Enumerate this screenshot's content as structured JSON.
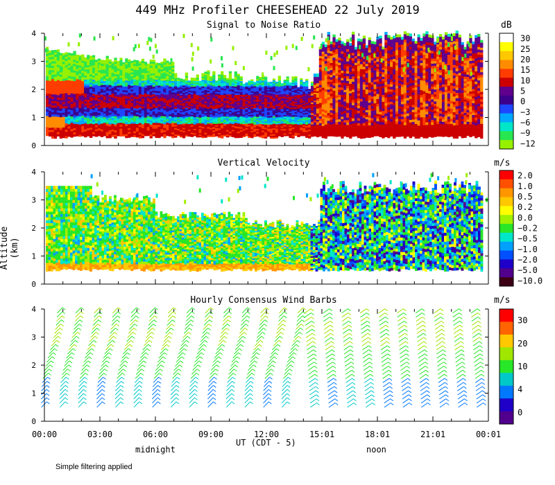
{
  "title": "449 MHz Profiler CHEESEHEAD 22 July 2019",
  "y_axis_label": "Altitude (km)",
  "x_axis_label": "UT  (CDT - 5)",
  "footnote": "Simple filtering applied",
  "local_time_labels": [
    {
      "label": "midnight",
      "hour": 5
    },
    {
      "label": "noon",
      "hour": 17
    }
  ],
  "chart_data": [
    {
      "type": "heatmap",
      "title": "Signal to Noise Ratio",
      "unit": "dB",
      "ylim": [
        0,
        4
      ],
      "yticks": [
        0,
        1,
        2,
        3,
        4
      ],
      "xlim": [
        0,
        24
      ],
      "xtick_labels": [
        "00:00",
        "03:00",
        "06:00",
        "09:00",
        "12:00",
        "15:01",
        "18:01",
        "21:01",
        "00:01"
      ],
      "colorbar": {
        "labels": [
          "30",
          "25",
          "20",
          "15",
          "10",
          "5",
          "0",
          "−3",
          "−6",
          "−9",
          "−12"
        ],
        "colors": [
          "#ffffff",
          "#ffff00",
          "#ffc800",
          "#ff8c00",
          "#ff3c00",
          "#cc0000",
          "#60008c",
          "#3c008c",
          "#1e46ff",
          "#00a8ff",
          "#00e6c8",
          "#28e650",
          "#96f000"
        ]
      }
    },
    {
      "type": "heatmap",
      "title": "Vertical Velocity",
      "unit": "m/s",
      "ylim": [
        0,
        4
      ],
      "yticks": [
        0,
        1,
        2,
        3,
        4
      ],
      "xlim": [
        0,
        24
      ],
      "colorbar": {
        "labels": [
          "2.0",
          "1.0",
          "0.5",
          "0.2",
          "0.0",
          "−0.2",
          "−0.5",
          "−1.0",
          "−2.0",
          "−5.0",
          "−10.0"
        ],
        "colors": [
          "#ff0000",
          "#ff5000",
          "#ff9600",
          "#ffc800",
          "#ffff00",
          "#a0f000",
          "#28e628",
          "#00e6c8",
          "#00a0ff",
          "#0050ff",
          "#1e00c8",
          "#50008c",
          "#3c0014"
        ]
      }
    },
    {
      "type": "wind_barbs",
      "title": "Hourly Consensus Wind Barbs",
      "unit": "m/s",
      "ylim": [
        0,
        4
      ],
      "yticks": [
        0,
        1,
        2,
        3,
        4
      ],
      "xlim": [
        0,
        24
      ],
      "hours": [
        0,
        1,
        2,
        3,
        4,
        5,
        6,
        7,
        8,
        9,
        10,
        11,
        12,
        13,
        14,
        15,
        16,
        17,
        18,
        19,
        20,
        21,
        22,
        23
      ],
      "colorbar": {
        "labels": [
          "30",
          "20",
          "10",
          "4",
          "0"
        ],
        "colors": [
          "#ff0000",
          "#ff6400",
          "#ffc800",
          "#a0e600",
          "#28e628",
          "#00c8c8",
          "#0078ff",
          "#1e00c8",
          "#50008c"
        ]
      }
    }
  ]
}
